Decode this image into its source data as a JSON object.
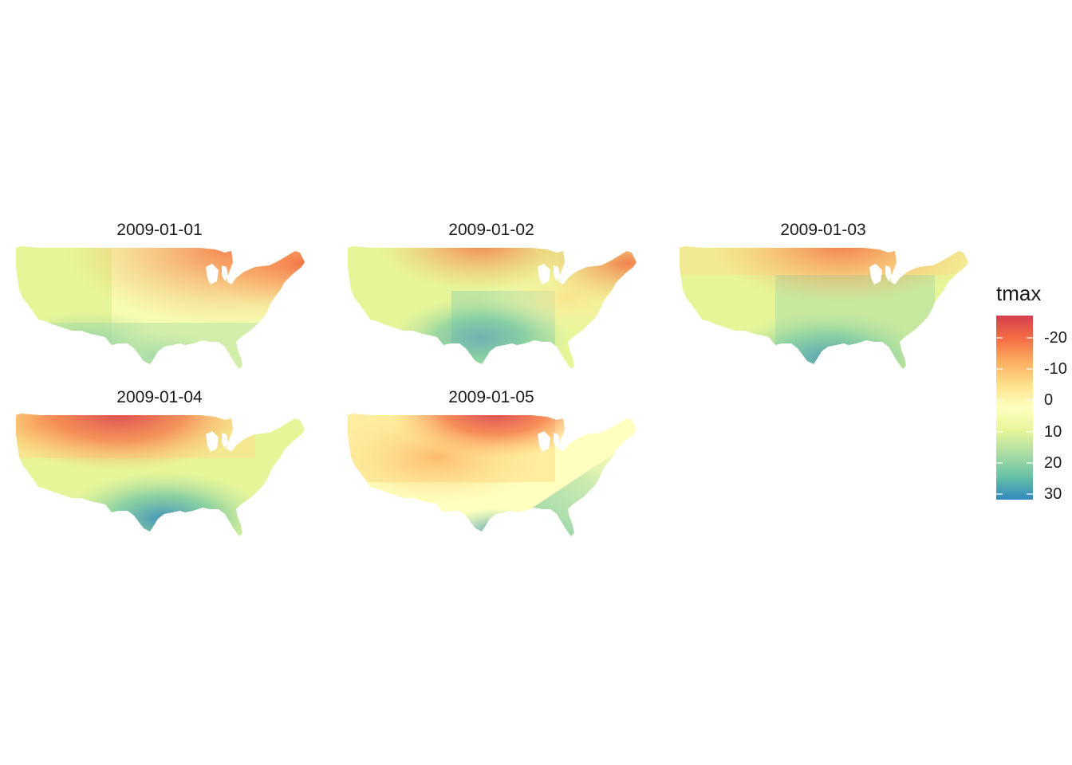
{
  "panels": [
    {
      "title": "2009-01-01"
    },
    {
      "title": "2009-01-02"
    },
    {
      "title": "2009-01-03"
    },
    {
      "title": "2009-01-04"
    },
    {
      "title": "2009-01-05"
    }
  ],
  "legend": {
    "title": "tmax",
    "labels": [
      "-20",
      "-10",
      "0",
      "10",
      "20",
      "30"
    ],
    "scale": "reversed",
    "palette": [
      "#3288bd",
      "#66c2a5",
      "#abdda4",
      "#e6f598",
      "#ffffbf",
      "#fee08b",
      "#fdae61",
      "#f46d43",
      "#d53e4f"
    ]
  },
  "colors": {
    "cold_red": "#d53e4f",
    "orange": "#f46d43",
    "light_orange": "#fdae61",
    "pale_yellow": "#ffffbf",
    "light_green": "#e6f598",
    "green": "#abdda4",
    "teal": "#66c2a5",
    "warm_blue": "#3288bd"
  }
}
